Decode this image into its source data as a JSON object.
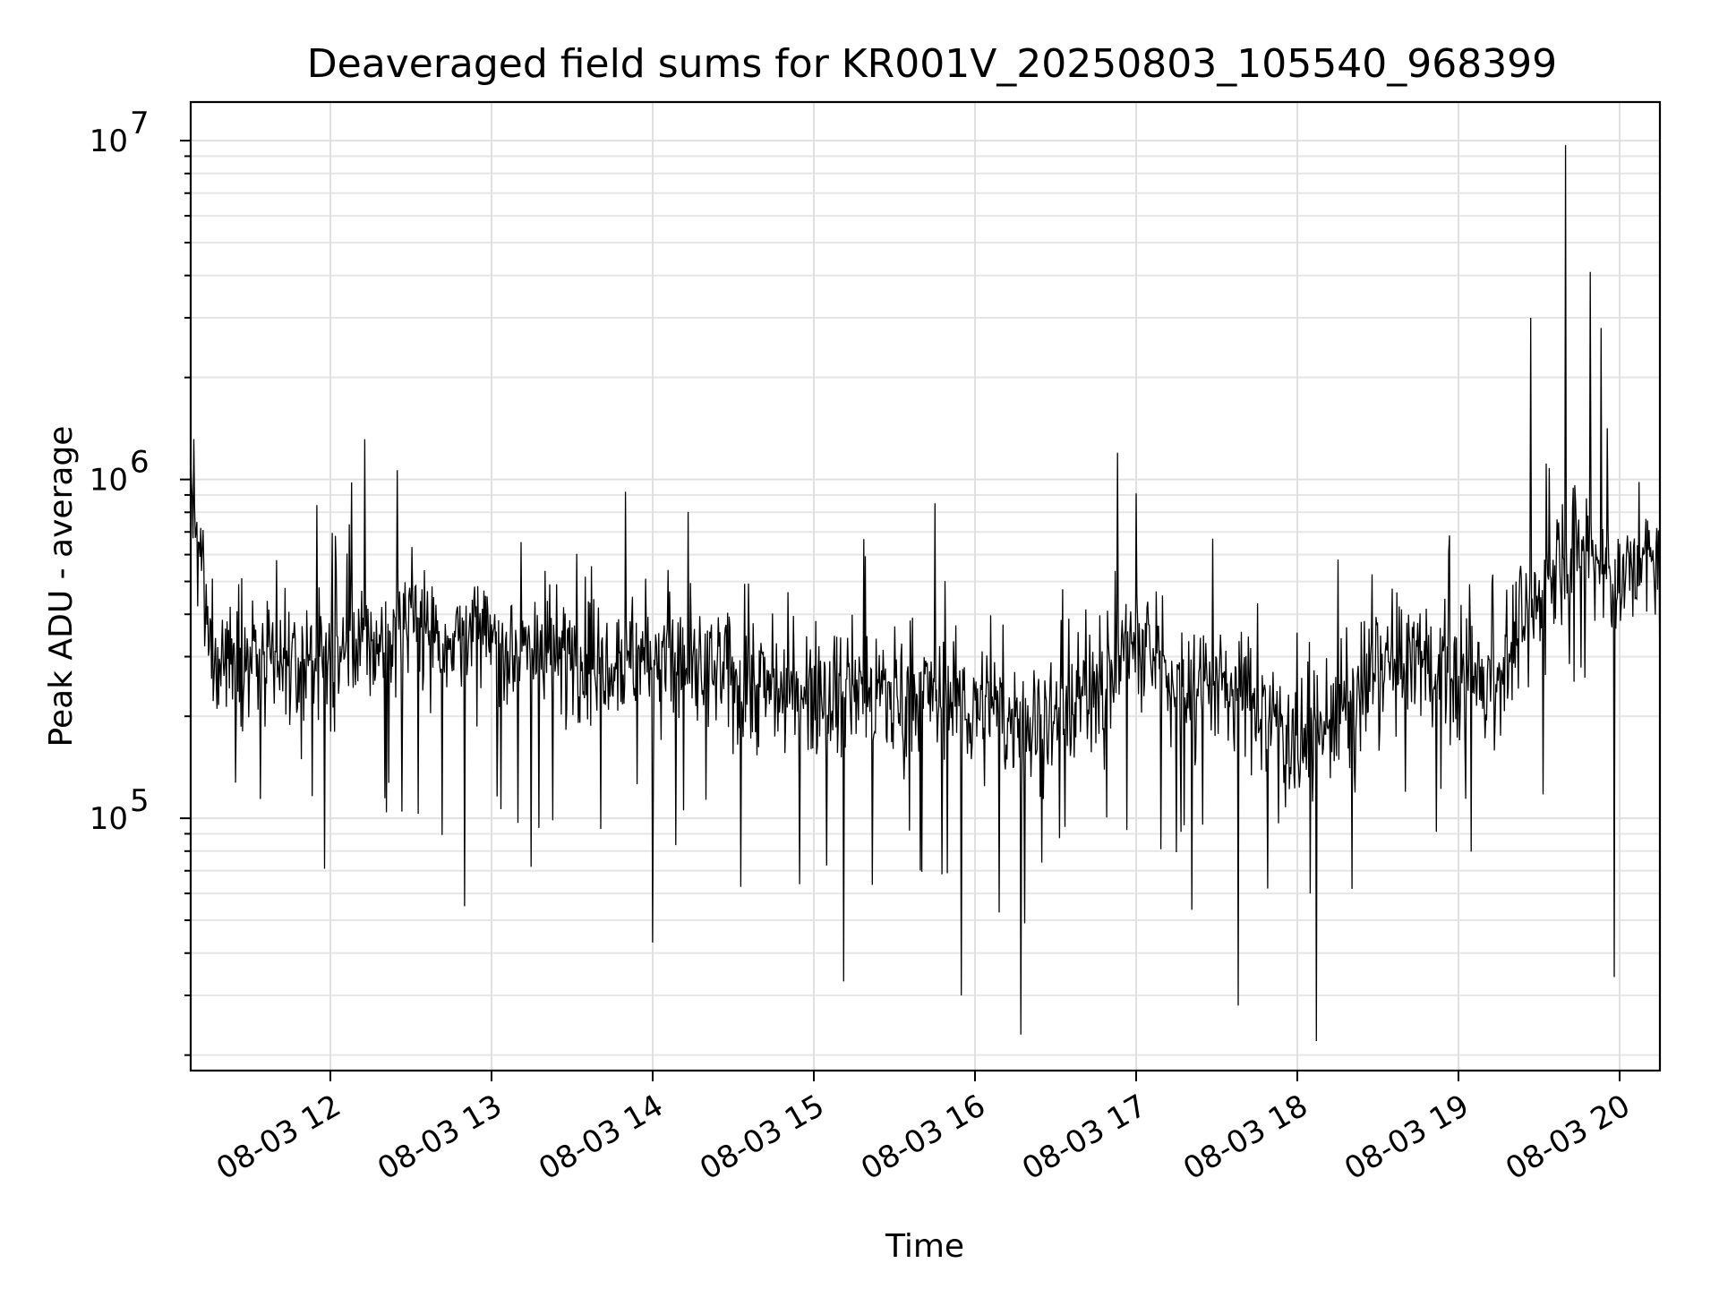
{
  "chart_data": {
    "type": "line",
    "title": "Deaveraged field sums for KR001V_20250803_105540_968399",
    "xlabel": "Time",
    "ylabel": "Peak ADU - average",
    "yscale": "log",
    "ylim": [
      18000,
      13000000
    ],
    "xlim": [
      "2025-08-03 11:08",
      "2025-08-03 20:15"
    ],
    "grid": true,
    "x_ticks": [
      {
        "t": "2025-08-03 12:00",
        "label": "08-03 12"
      },
      {
        "t": "2025-08-03 13:00",
        "label": "08-03 13"
      },
      {
        "t": "2025-08-03 14:00",
        "label": "08-03 14"
      },
      {
        "t": "2025-08-03 15:00",
        "label": "08-03 15"
      },
      {
        "t": "2025-08-03 16:00",
        "label": "08-03 16"
      },
      {
        "t": "2025-08-03 17:00",
        "label": "08-03 17"
      },
      {
        "t": "2025-08-03 18:00",
        "label": "08-03 18"
      },
      {
        "t": "2025-08-03 19:00",
        "label": "08-03 19"
      },
      {
        "t": "2025-08-03 20:00",
        "label": "08-03 20"
      }
    ],
    "y_ticks": [
      {
        "value": 100000,
        "base": "10",
        "exp": "5"
      },
      {
        "value": 1000000,
        "base": "10",
        "exp": "6"
      },
      {
        "value": 10000000,
        "base": "10",
        "exp": "7"
      }
    ],
    "series": [
      {
        "color": "#000000",
        "x": [
          "2025-08-03 11:08",
          "2025-08-03 11:15",
          "2025-08-03 11:30",
          "2025-08-03 11:45",
          "2025-08-03 12:00",
          "2025-08-03 12:15",
          "2025-08-03 12:30",
          "2025-08-03 12:45",
          "2025-08-03 13:00",
          "2025-08-03 13:15",
          "2025-08-03 13:30",
          "2025-08-03 13:45",
          "2025-08-03 14:00",
          "2025-08-03 14:15",
          "2025-08-03 14:30",
          "2025-08-03 14:45",
          "2025-08-03 15:00",
          "2025-08-03 15:15",
          "2025-08-03 15:30",
          "2025-08-03 15:45",
          "2025-08-03 16:00",
          "2025-08-03 16:15",
          "2025-08-03 16:30",
          "2025-08-03 16:45",
          "2025-08-03 17:00",
          "2025-08-03 17:15",
          "2025-08-03 17:30",
          "2025-08-03 17:45",
          "2025-08-03 18:00",
          "2025-08-03 18:15",
          "2025-08-03 18:30",
          "2025-08-03 18:45",
          "2025-08-03 19:00",
          "2025-08-03 19:15",
          "2025-08-03 19:30",
          "2025-08-03 19:45",
          "2025-08-03 20:00",
          "2025-08-03 20:15"
        ],
        "y": [
          1000000,
          320000,
          290000,
          270000,
          300000,
          330000,
          380000,
          340000,
          330000,
          320000,
          300000,
          310000,
          300000,
          270000,
          260000,
          240000,
          250000,
          240000,
          230000,
          240000,
          210000,
          190000,
          200000,
          250000,
          330000,
          260000,
          250000,
          220000,
          170000,
          200000,
          260000,
          300000,
          260000,
          260000,
          450000,
          650000,
          500000,
          600000
        ],
        "spikes": [
          {
            "t": "2025-08-03 11:08",
            "value": 1150000
          },
          {
            "t": "2025-08-03 11:55",
            "value": 840000
          },
          {
            "t": "2025-08-03 12:08",
            "value": 980000
          },
          {
            "t": "2025-08-03 12:50",
            "value": 55000
          },
          {
            "t": "2025-08-03 13:50",
            "value": 920000
          },
          {
            "t": "2025-08-03 14:00",
            "value": 43000
          },
          {
            "t": "2025-08-03 15:11",
            "value": 33000
          },
          {
            "t": "2025-08-03 15:45",
            "value": 850000
          },
          {
            "t": "2025-08-03 15:55",
            "value": 30000
          },
          {
            "t": "2025-08-03 16:17",
            "value": 23000
          },
          {
            "t": "2025-08-03 16:53",
            "value": 1200000
          },
          {
            "t": "2025-08-03 17:38",
            "value": 28000
          },
          {
            "t": "2025-08-03 18:07",
            "value": 22000
          },
          {
            "t": "2025-08-03 19:27",
            "value": 3000000
          },
          {
            "t": "2025-08-03 19:40",
            "value": 9700000
          },
          {
            "t": "2025-08-03 19:49",
            "value": 4100000
          },
          {
            "t": "2025-08-03 19:53",
            "value": 2800000
          },
          {
            "t": "2025-08-03 19:58",
            "value": 34000
          }
        ]
      }
    ]
  }
}
